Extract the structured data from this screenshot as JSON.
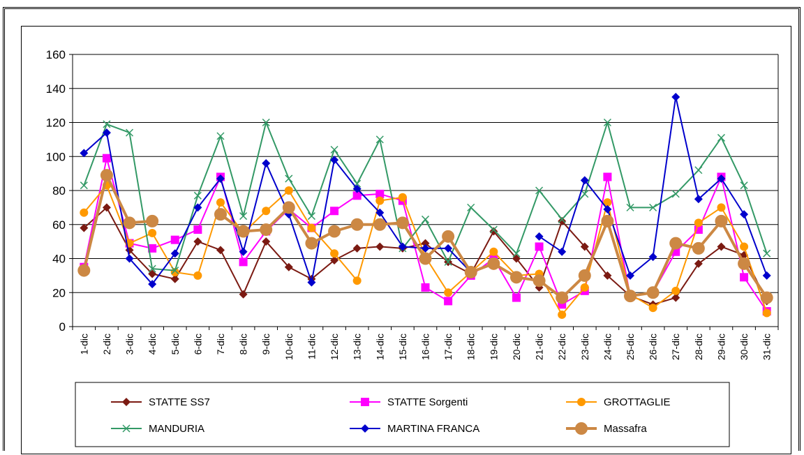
{
  "caption": "",
  "chart_data": {
    "type": "line",
    "title": "",
    "xlabel": "",
    "ylabel": "",
    "ylim": [
      0,
      160
    ],
    "yticks": [
      0,
      20,
      40,
      60,
      80,
      100,
      120,
      140,
      160
    ],
    "grid": "horizontal",
    "legend_position": "bottom",
    "categories": [
      "1-dic",
      "2-dic",
      "3-dic",
      "4-dic",
      "5-dic",
      "6-dic",
      "7-dic",
      "8-dic",
      "9-dic",
      "10-dic",
      "11-dic",
      "12-dic",
      "13-dic",
      "14-dic",
      "15-dic",
      "16-dic",
      "17-dic",
      "18-dic",
      "19-dic",
      "20-dic",
      "21-dic",
      "22-dic",
      "23-dic",
      "24-dic",
      "25-dic",
      "26-dic",
      "27-dic",
      "28-dic",
      "29-dic",
      "30-dic",
      "31-dic"
    ],
    "series": [
      {
        "name": "STATTE SS7",
        "color": "#7b1a12",
        "marker": "diamond",
        "values": [
          58,
          70,
          45,
          31,
          28,
          50,
          45,
          19,
          50,
          35,
          28,
          39,
          46,
          47,
          46,
          49,
          38,
          31,
          56,
          40,
          23,
          62,
          47,
          30,
          18,
          13,
          17,
          37,
          47,
          42,
          15
        ]
      },
      {
        "name": "STATTE Sorgenti",
        "color": "#ff00ff",
        "marker": "square",
        "values": [
          35,
          99,
          49,
          46,
          51,
          57,
          88,
          38,
          56,
          69,
          58,
          68,
          77,
          78,
          74,
          23,
          15,
          30,
          40,
          17,
          47,
          13,
          21,
          88,
          18,
          20,
          44,
          57,
          88,
          29,
          9
        ]
      },
      {
        "name": "GROTTAGLIE",
        "color": "#ff9900",
        "marker": "circle",
        "values": [
          67,
          83,
          49,
          55,
          32,
          30,
          73,
          55,
          68,
          80,
          58,
          43,
          27,
          74,
          76,
          41,
          20,
          32,
          44,
          30,
          31,
          7,
          23,
          73,
          19,
          11,
          21,
          61,
          70,
          47,
          8
        ]
      },
      {
        "name": "MANDURIA",
        "color": "#339966",
        "marker": "x",
        "values": [
          83,
          119,
          114,
          34,
          33,
          77,
          112,
          65,
          120,
          87,
          65,
          104,
          84,
          110,
          46,
          63,
          38,
          70,
          57,
          43,
          80,
          63,
          78,
          120,
          70,
          70,
          78,
          92,
          111,
          83,
          43
        ]
      },
      {
        "name": "MARTINA FRANCA",
        "color": "#0000cc",
        "marker": "diamond",
        "values": [
          102,
          114,
          40,
          25,
          43,
          70,
          87,
          44,
          96,
          66,
          26,
          98,
          81,
          67,
          47,
          46,
          46,
          32,
          null,
          null,
          53,
          44,
          86,
          69,
          30,
          41,
          135,
          75,
          87,
          66,
          30
        ]
      },
      {
        "name": "Massafra",
        "color": "#cc8844",
        "marker": "bigcircle",
        "values": [
          33,
          89,
          61,
          62,
          null,
          null,
          66,
          56,
          57,
          70,
          49,
          56,
          60,
          60,
          61,
          40,
          53,
          32,
          37,
          29,
          27,
          17,
          30,
          62,
          18,
          20,
          49,
          46,
          62,
          37,
          17
        ]
      }
    ]
  }
}
